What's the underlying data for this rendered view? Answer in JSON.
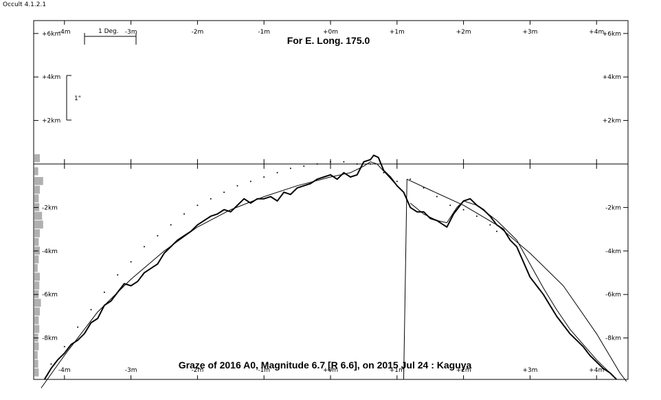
{
  "window": {
    "title": "Occult 4.1.2.1"
  },
  "chart_data": {
    "type": "line",
    "title": "For E. Long. 175.0",
    "caption": "Graze of 2016 A0,  Magnitude 6.7 [R 6.6],  on 2015 Jul 24  :  Kaguya",
    "x_axis": {
      "unit": "minutes of lunar position angle",
      "range": [
        -4.5,
        4.5
      ],
      "ticks": [
        -4,
        -3,
        -2,
        -1,
        0,
        1,
        2,
        3,
        4
      ],
      "top_tick_labels": [
        "-4m",
        "-3m",
        "-2m",
        "-1m",
        "+0m",
        "+1m",
        "+2m",
        "+3m",
        "+4m"
      ],
      "bottom_tick_labels": [
        "-4m",
        "-3m",
        "-2m",
        "-1m",
        "+0m",
        "+1m",
        "+2m",
        "+3m",
        "+4m"
      ]
    },
    "y_axis": {
      "unit": "km",
      "range": [
        -9.9,
        6.6
      ],
      "ticks": [
        6,
        4,
        2,
        -2,
        -4,
        -6,
        -8
      ],
      "left_tick_labels": [
        "+6km",
        "+4km",
        "+2km",
        "-2km",
        "-4km",
        "-6km",
        "-8km"
      ],
      "right_tick_labels": [
        "+6km",
        "+4km",
        "+2km",
        "-2km",
        "-4km",
        "-6km",
        "-8km"
      ]
    },
    "scale_bars": {
      "degree_label": "1 Deg.",
      "arcsec_label": "1\""
    },
    "series": [
      {
        "role": "lunar_limb_profile",
        "style": "thick",
        "points": [
          [
            -4.3,
            -9.9
          ],
          [
            -4.2,
            -9.4
          ],
          [
            -4.1,
            -9.0
          ],
          [
            -4.0,
            -8.7
          ],
          [
            -3.9,
            -8.3
          ],
          [
            -3.8,
            -8.1
          ],
          [
            -3.7,
            -7.8
          ],
          [
            -3.6,
            -7.3
          ],
          [
            -3.5,
            -7.1
          ],
          [
            -3.4,
            -6.5
          ],
          [
            -3.3,
            -6.3
          ],
          [
            -3.2,
            -5.9
          ],
          [
            -3.1,
            -5.5
          ],
          [
            -3.0,
            -5.6
          ],
          [
            -2.9,
            -5.4
          ],
          [
            -2.8,
            -5.0
          ],
          [
            -2.7,
            -4.8
          ],
          [
            -2.6,
            -4.6
          ],
          [
            -2.5,
            -4.1
          ],
          [
            -2.4,
            -3.8
          ],
          [
            -2.3,
            -3.5
          ],
          [
            -2.2,
            -3.3
          ],
          [
            -2.1,
            -3.1
          ],
          [
            -2.0,
            -2.8
          ],
          [
            -1.9,
            -2.6
          ],
          [
            -1.8,
            -2.4
          ],
          [
            -1.7,
            -2.3
          ],
          [
            -1.6,
            -2.1
          ],
          [
            -1.5,
            -2.2
          ],
          [
            -1.4,
            -1.9
          ],
          [
            -1.3,
            -1.6
          ],
          [
            -1.2,
            -1.8
          ],
          [
            -1.1,
            -1.6
          ],
          [
            -1.0,
            -1.6
          ],
          [
            -0.9,
            -1.5
          ],
          [
            -0.8,
            -1.7
          ],
          [
            -0.7,
            -1.3
          ],
          [
            -0.6,
            -1.4
          ],
          [
            -0.5,
            -1.1
          ],
          [
            -0.4,
            -1.0
          ],
          [
            -0.3,
            -0.9
          ],
          [
            -0.2,
            -0.7
          ],
          [
            -0.1,
            -0.6
          ],
          [
            0.0,
            -0.5
          ],
          [
            0.1,
            -0.7
          ],
          [
            0.2,
            -0.4
          ],
          [
            0.3,
            -0.6
          ],
          [
            0.4,
            -0.5
          ],
          [
            0.5,
            0.1
          ],
          [
            0.6,
            0.2
          ],
          [
            0.65,
            0.4
          ],
          [
            0.72,
            0.3
          ],
          [
            0.8,
            -0.3
          ],
          [
            0.9,
            -0.6
          ],
          [
            1.0,
            -1.0
          ],
          [
            1.1,
            -1.3
          ],
          [
            1.2,
            -2.0
          ],
          [
            1.3,
            -2.2
          ],
          [
            1.4,
            -2.2
          ],
          [
            1.5,
            -2.5
          ],
          [
            1.6,
            -2.6
          ],
          [
            1.7,
            -2.8
          ],
          [
            1.75,
            -2.9
          ],
          [
            1.85,
            -2.3
          ],
          [
            2.0,
            -1.7
          ],
          [
            2.1,
            -1.6
          ],
          [
            2.2,
            -1.9
          ],
          [
            2.3,
            -2.1
          ],
          [
            2.4,
            -2.4
          ],
          [
            2.5,
            -2.8
          ],
          [
            2.6,
            -3.0
          ],
          [
            2.7,
            -3.5
          ],
          [
            2.8,
            -3.8
          ],
          [
            2.9,
            -4.5
          ],
          [
            3.0,
            -5.2
          ],
          [
            3.1,
            -5.6
          ],
          [
            3.2,
            -6.0
          ],
          [
            3.3,
            -6.5
          ],
          [
            3.4,
            -7.0
          ],
          [
            3.5,
            -7.4
          ],
          [
            3.6,
            -7.8
          ],
          [
            3.7,
            -8.1
          ],
          [
            3.8,
            -8.4
          ],
          [
            3.9,
            -8.8
          ],
          [
            4.0,
            -9.1
          ],
          [
            4.1,
            -9.4
          ],
          [
            4.2,
            -9.6
          ],
          [
            4.3,
            -9.9
          ]
        ]
      },
      {
        "role": "smoothed_limb",
        "style": "thin",
        "points": [
          [
            -4.35,
            -10.3
          ],
          [
            -4.0,
            -8.8
          ],
          [
            -3.5,
            -6.8
          ],
          [
            -3.0,
            -5.3
          ],
          [
            -2.5,
            -4.0
          ],
          [
            -2.0,
            -2.9
          ],
          [
            -1.5,
            -2.1
          ],
          [
            -1.0,
            -1.5
          ],
          [
            -0.5,
            -1.0
          ],
          [
            0.0,
            -0.6
          ],
          [
            0.3,
            -0.4
          ],
          [
            0.5,
            -0.1
          ],
          [
            0.6,
            0.1
          ],
          [
            0.7,
            0.0
          ],
          [
            0.85,
            -0.5
          ],
          [
            1.0,
            -1.0
          ],
          [
            1.1,
            -1.3
          ]
        ]
      },
      {
        "role": "smoothed_limb_right",
        "style": "thin",
        "points": [
          [
            1.2,
            -1.8
          ],
          [
            1.4,
            -2.3
          ],
          [
            1.6,
            -2.6
          ],
          [
            1.75,
            -2.7
          ],
          [
            1.9,
            -2.0
          ],
          [
            2.0,
            -1.7
          ],
          [
            2.2,
            -1.9
          ],
          [
            2.5,
            -2.6
          ],
          [
            2.8,
            -3.5
          ],
          [
            3.0,
            -4.6
          ],
          [
            3.2,
            -5.7
          ],
          [
            3.4,
            -6.7
          ],
          [
            3.6,
            -7.6
          ],
          [
            3.8,
            -8.3
          ],
          [
            4.0,
            -9.0
          ],
          [
            4.2,
            -9.6
          ],
          [
            4.3,
            -9.9
          ]
        ]
      },
      {
        "role": "mean_limb_arc",
        "style": "thin",
        "points": [
          [
            1.1,
            -9.9
          ],
          [
            1.15,
            -0.7
          ],
          [
            1.5,
            -1.2
          ],
          [
            2.0,
            -1.9
          ],
          [
            2.5,
            -2.8
          ],
          [
            3.0,
            -4.1
          ],
          [
            3.5,
            -5.6
          ],
          [
            4.0,
            -7.8
          ],
          [
            4.35,
            -9.6
          ],
          [
            4.45,
            -10.0
          ]
        ]
      },
      {
        "role": "dotted_reference",
        "style": "dots",
        "points": [
          [
            -4.2,
            -9.2
          ],
          [
            -4.0,
            -8.4
          ],
          [
            -3.8,
            -7.5
          ],
          [
            -3.6,
            -6.7
          ],
          [
            -3.4,
            -5.9
          ],
          [
            -3.2,
            -5.1
          ],
          [
            -3.0,
            -4.5
          ],
          [
            -2.8,
            -3.8
          ],
          [
            -2.6,
            -3.3
          ],
          [
            -2.4,
            -2.8
          ],
          [
            -2.2,
            -2.3
          ],
          [
            -2.0,
            -1.9
          ],
          [
            -1.8,
            -1.6
          ],
          [
            -1.6,
            -1.3
          ],
          [
            -1.4,
            -1.0
          ],
          [
            -1.2,
            -0.8
          ],
          [
            -1.0,
            -0.6
          ],
          [
            -0.8,
            -0.4
          ],
          [
            -0.6,
            -0.2
          ],
          [
            -0.4,
            -0.1
          ],
          [
            -0.2,
            0.0
          ],
          [
            0.0,
            0.1
          ],
          [
            0.2,
            0.1
          ],
          [
            0.4,
            0.0
          ],
          [
            0.6,
            0.0
          ],
          [
            0.8,
            -0.4
          ],
          [
            1.0,
            -0.8
          ],
          [
            1.2,
            -0.7
          ],
          [
            1.4,
            -1.1
          ],
          [
            1.6,
            -1.5
          ],
          [
            1.8,
            -1.9
          ],
          [
            2.0,
            -2.1
          ],
          [
            2.2,
            -2.4
          ],
          [
            2.4,
            -2.8
          ],
          [
            2.5,
            -3.1
          ]
        ]
      }
    ],
    "histogram_bins": [
      {
        "y": 0.25,
        "w": 1.0
      },
      {
        "y": -0.35,
        "w": 0.7
      },
      {
        "y": -0.8,
        "w": 1.6
      },
      {
        "y": -1.2,
        "w": 1.0
      },
      {
        "y": -1.6,
        "w": 0.8
      },
      {
        "y": -2.0,
        "w": 0.9
      },
      {
        "y": -2.4,
        "w": 1.4
      },
      {
        "y": -2.8,
        "w": 1.6
      },
      {
        "y": -3.2,
        "w": 1.0
      },
      {
        "y": -3.6,
        "w": 0.8
      },
      {
        "y": -4.0,
        "w": 1.0
      },
      {
        "y": -4.4,
        "w": 0.8
      },
      {
        "y": -4.8,
        "w": 0.6
      },
      {
        "y": -5.2,
        "w": 1.0
      },
      {
        "y": -5.6,
        "w": 0.9
      },
      {
        "y": -6.0,
        "w": 0.8
      },
      {
        "y": -6.4,
        "w": 1.2
      },
      {
        "y": -6.8,
        "w": 1.0
      },
      {
        "y": -7.2,
        "w": 0.8
      },
      {
        "y": -7.6,
        "w": 0.9
      },
      {
        "y": -8.0,
        "w": 0.7
      },
      {
        "y": -8.4,
        "w": 0.8
      },
      {
        "y": -8.8,
        "w": 0.6
      },
      {
        "y": -9.2,
        "w": 0.7
      },
      {
        "y": -9.6,
        "w": 0.8
      }
    ],
    "grid": false,
    "legend": "none"
  }
}
